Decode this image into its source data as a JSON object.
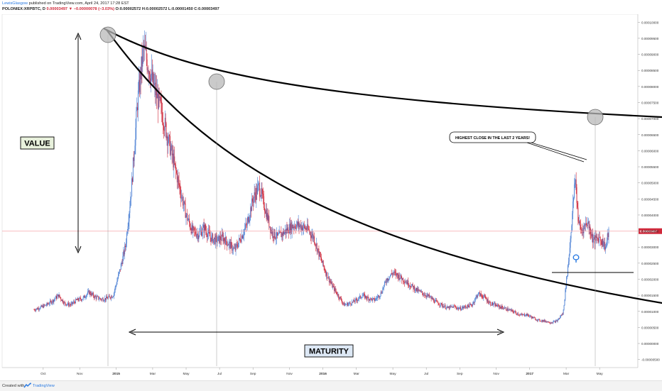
{
  "header": {
    "author": "LewisGlasgow",
    "published": "published on TradingView.com, April 24, 2017 17:28 EST",
    "symbol": "POLONIEX:XRPBTC, D",
    "last": "0.00003497",
    "change": "▼ −0.00000078 (−3.03%)",
    "o": "O:0.00002572",
    "h": "H:0.00002572",
    "l": "L:0.00001450",
    "c": "C:0.00003497"
  },
  "footer": {
    "created": "Created with",
    "brand": "TradingView"
  },
  "annotations": {
    "value": "VALUE",
    "maturity": "MATURITY",
    "callout": "HIGHEST CLOSE IN THE LAST 2 YEARS!"
  },
  "colors": {
    "up": "#4a7fd4",
    "down": "#d0283a",
    "price_line": "#f5a6ad",
    "label_bg": "#d0283a"
  },
  "chart_data": {
    "type": "candlestick",
    "title": "",
    "x_tick_labels": [
      "Oct",
      "Nov",
      "2015",
      "Mar",
      "May",
      "Jul",
      "Sep",
      "Nov",
      "2016",
      "Mar",
      "May",
      "Jul",
      "Sep",
      "Nov",
      "2017",
      "Mar",
      "May"
    ],
    "y_tick_labels": [
      "0.00010000",
      "0.00009500",
      "0.00009000",
      "0.00008500",
      "0.00008000",
      "0.00007500",
      "0.00007000",
      "0.00006500",
      "0.00006000",
      "0.00005500",
      "0.00005000",
      "0.00004500",
      "0.00004000",
      "0.00003500",
      "0.00003000",
      "0.00002500",
      "0.00002000",
      "0.00001500",
      "0.00001000",
      "0.00000500",
      "0.00000000",
      "-0.00000500"
    ],
    "ylim": [
      -7.5e-06,
      0.0001025
    ],
    "last_price_label": "0.00003497",
    "series": [
      {
        "type": "close",
        "points": [
          [
            0,
            1.05e-05
          ],
          [
            2,
            1.12e-05
          ],
          [
            4,
            1.2e-05
          ],
          [
            6,
            1.32e-05
          ],
          [
            8,
            1.5e-05
          ],
          [
            10,
            1.25e-05
          ],
          [
            12,
            1.2e-05
          ],
          [
            14,
            1.35e-05
          ],
          [
            16,
            1.4e-05
          ],
          [
            18,
            1.6e-05
          ],
          [
            20,
            1.45e-05
          ],
          [
            22,
            1.38e-05
          ],
          [
            24,
            1.4e-05
          ],
          [
            26,
            1.5e-05
          ],
          [
            28,
            2.2e-05
          ],
          [
            30,
            3e-05
          ],
          [
            32,
            4.8e-05
          ],
          [
            34,
            7.5e-05
          ],
          [
            36,
            9.2e-05
          ],
          [
            38,
            8.5e-05
          ],
          [
            40,
            7.8e-05
          ],
          [
            42,
            7.2e-05
          ],
          [
            44,
            6.4e-05
          ],
          [
            46,
            5.6e-05
          ],
          [
            48,
            4.8e-05
          ],
          [
            50,
            4e-05
          ],
          [
            52,
            3.5e-05
          ],
          [
            54,
            3.4e-05
          ],
          [
            56,
            3.6e-05
          ],
          [
            58,
            3.3e-05
          ],
          [
            60,
            3.2e-05
          ],
          [
            62,
            3.3e-05
          ],
          [
            64,
            3.1e-05
          ],
          [
            66,
            2.9e-05
          ],
          [
            68,
            3.3e-05
          ],
          [
            70,
            3.7e-05
          ],
          [
            72,
            4.5e-05
          ],
          [
            74,
            4.9e-05
          ],
          [
            76,
            4.2e-05
          ],
          [
            78,
            3.5e-05
          ],
          [
            80,
            3.3e-05
          ],
          [
            82,
            3.45e-05
          ],
          [
            84,
            3.6e-05
          ],
          [
            86,
            3.7e-05
          ],
          [
            88,
            3.65e-05
          ],
          [
            90,
            3.55e-05
          ],
          [
            92,
            3.3e-05
          ],
          [
            94,
            2.7e-05
          ],
          [
            96,
            2.2e-05
          ],
          [
            98,
            1.8e-05
          ],
          [
            100,
            1.5e-05
          ],
          [
            102,
            1.2e-05
          ],
          [
            104,
            1.25e-05
          ],
          [
            106,
            1.35e-05
          ],
          [
            108,
            1.5e-05
          ],
          [
            110,
            1.4e-05
          ],
          [
            112,
            1.35e-05
          ],
          [
            114,
            1.55e-05
          ],
          [
            116,
            2e-05
          ],
          [
            118,
            2.2e-05
          ],
          [
            120,
            2.1e-05
          ],
          [
            122,
            1.95e-05
          ],
          [
            124,
            1.8e-05
          ],
          [
            126,
            1.65e-05
          ],
          [
            128,
            1.55e-05
          ],
          [
            130,
            1.45e-05
          ],
          [
            132,
            1.3e-05
          ],
          [
            134,
            1.2e-05
          ],
          [
            136,
            1.1e-05
          ],
          [
            138,
            1.15e-05
          ],
          [
            140,
            1.08e-05
          ],
          [
            142,
            1.15e-05
          ],
          [
            144,
            1.2e-05
          ],
          [
            146,
            1.55e-05
          ],
          [
            148,
            1.45e-05
          ],
          [
            150,
            1.25e-05
          ],
          [
            152,
            1.18e-05
          ],
          [
            154,
            1.12e-05
          ],
          [
            156,
            1.05e-05
          ],
          [
            158,
            9.8e-06
          ],
          [
            160,
            8.8e-06
          ],
          [
            162,
            9e-06
          ],
          [
            164,
            8e-06
          ],
          [
            166,
            7.2e-06
          ],
          [
            168,
            7e-06
          ],
          [
            170,
            6.5e-06
          ],
          [
            172,
            7e-06
          ],
          [
            174,
            9.5e-06
          ],
          [
            176,
            2.8e-05
          ],
          [
            178,
            5.2e-05
          ],
          [
            179,
            3.8e-05
          ],
          [
            180,
            3.5e-05
          ],
          [
            182,
            3.8e-05
          ],
          [
            184,
            3.2e-05
          ],
          [
            186,
            3.3e-05
          ],
          [
            188,
            3e-05
          ],
          [
            189,
            3.5e-05
          ]
        ]
      }
    ],
    "annotations": [
      {
        "type": "text",
        "text": "VALUE"
      },
      {
        "type": "text",
        "text": "MATURITY"
      },
      {
        "type": "text",
        "text": "HIGHEST CLOSE IN THE LAST 2 YEARS!"
      }
    ]
  }
}
